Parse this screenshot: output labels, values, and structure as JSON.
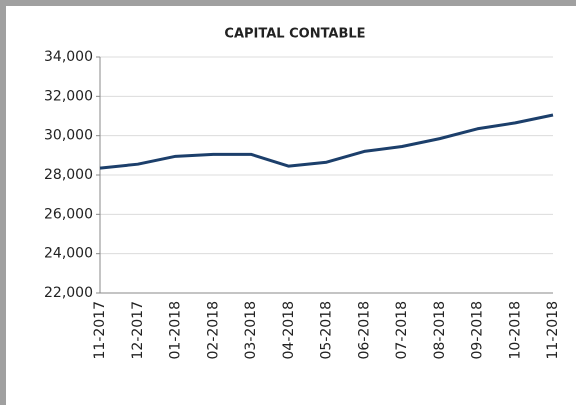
{
  "chart_data": {
    "type": "line",
    "title": "CAPITAL CONTABLE",
    "categories": [
      "11-2017",
      "12-2017",
      "01-2018",
      "02-2018",
      "03-2018",
      "04-2018",
      "05-2018",
      "06-2018",
      "07-2018",
      "08-2018",
      "09-2018",
      "10-2018",
      "11-2018"
    ],
    "series": [
      {
        "color": "#1c3f6b",
        "values": [
          28350,
          28550,
          28950,
          29050,
          29050,
          28450,
          28650,
          29200,
          29450,
          29850,
          30350,
          30650,
          31050
        ]
      }
    ],
    "ylim": [
      22000,
      34000
    ],
    "yticks": [
      {
        "value": 22000,
        "label": "22,000"
      },
      {
        "value": 24000,
        "label": "24,000"
      },
      {
        "value": 26000,
        "label": "26,000"
      },
      {
        "value": 28000,
        "label": "28,000"
      },
      {
        "value": 30000,
        "label": "30,000"
      },
      {
        "value": 32000,
        "label": "32,000"
      },
      {
        "value": 34000,
        "label": "34,000"
      }
    ],
    "grid": true
  }
}
